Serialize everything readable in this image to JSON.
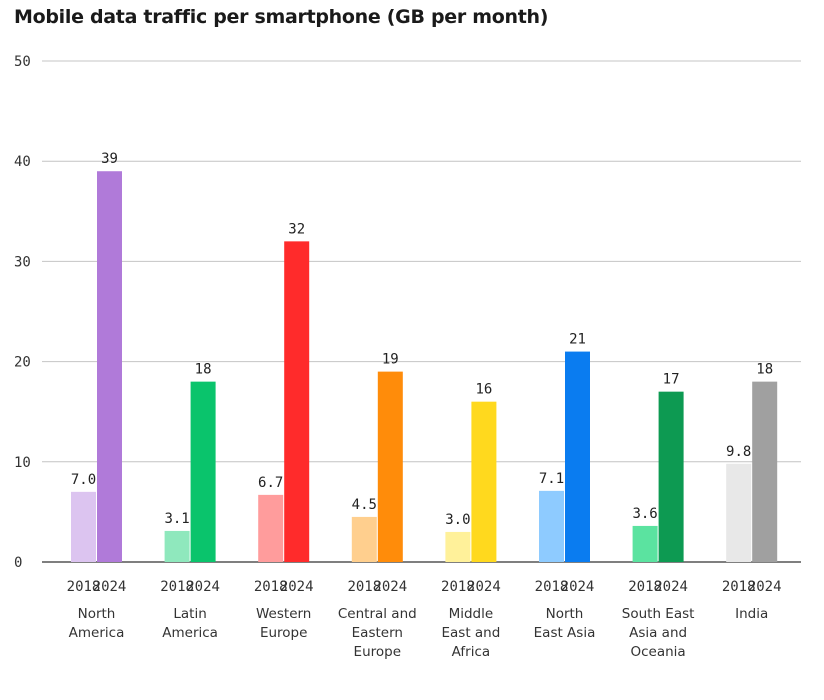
{
  "chart_data": {
    "type": "bar",
    "title": "Mobile data traffic per smartphone (GB per month)",
    "ylim": [
      0,
      50
    ],
    "yticks": [
      0,
      10,
      20,
      30,
      40,
      50
    ],
    "grid": true,
    "series_years": [
      "2018",
      "2024"
    ],
    "categories": [
      {
        "name": [
          "North",
          "America"
        ],
        "v2018": 7.0,
        "label2018": "7.0",
        "v2024": 39,
        "label2024": "39",
        "color2018": "#dcc4f0",
        "color2024": "#b07ad9"
      },
      {
        "name": [
          "Latin",
          "America"
        ],
        "v2018": 3.1,
        "label2018": "3.1",
        "v2024": 18,
        "label2024": "18",
        "color2018": "#8fe8bd",
        "color2024": "#0ac46c"
      },
      {
        "name": [
          "Western",
          "Europe"
        ],
        "v2018": 6.7,
        "label2018": "6.7",
        "v2024": 32,
        "label2024": "32",
        "color2018": "#ff9c9c",
        "color2024": "#ff2b2b"
      },
      {
        "name": [
          "Central and",
          "Eastern",
          "Europe"
        ],
        "v2018": 4.5,
        "label2018": "4.5",
        "v2024": 19,
        "label2024": "19",
        "color2018": "#ffcf8e",
        "color2024": "#ff8c0a"
      },
      {
        "name": [
          "Middle",
          "East and",
          "Africa"
        ],
        "v2018": 3.0,
        "label2018": "3.0",
        "v2024": 16,
        "label2024": "16",
        "color2018": "#fff19a",
        "color2024": "#ffd91e"
      },
      {
        "name": [
          "North",
          "East Asia"
        ],
        "v2018": 7.1,
        "label2018": "7.1",
        "v2024": 21,
        "label2024": "21",
        "color2018": "#8ecbff",
        "color2024": "#0a7cf0"
      },
      {
        "name": [
          "South East",
          "Asia and",
          "Oceania"
        ],
        "v2018": 3.6,
        "label2018": "3.6",
        "v2024": 17,
        "label2024": "17",
        "color2018": "#5be3a0",
        "color2024": "#0d9a52"
      },
      {
        "name": [
          "India"
        ],
        "v2018": 9.8,
        "label2018": "9.8",
        "v2024": 18,
        "label2024": "18",
        "color2018": "#e8e8e8",
        "color2024": "#a0a0a0"
      }
    ]
  }
}
